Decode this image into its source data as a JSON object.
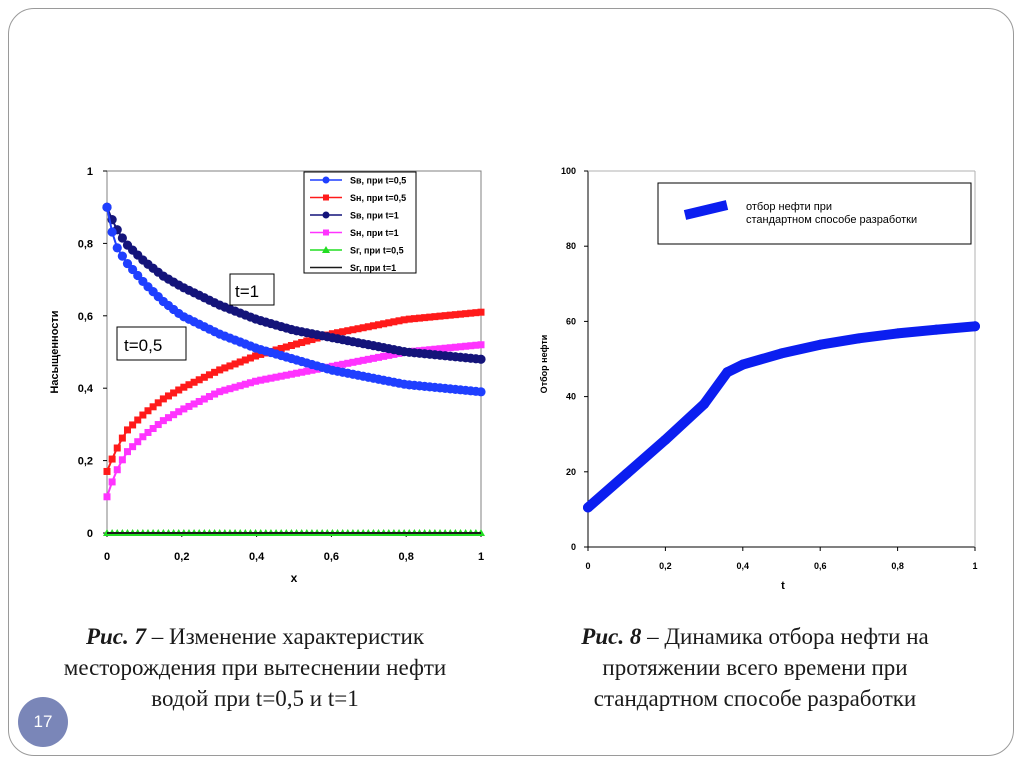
{
  "slide_number": "17",
  "captions": {
    "fig7": {
      "label": "Рис. 7",
      "dash": " – ",
      "text": "Изменение характеристик месторождения при вытеснении нефти водой при t=0,5 и t=1"
    },
    "fig8": {
      "label": "Рис. 8",
      "dash": " – ",
      "text": "Динамика отбора нефти на протяжении всего времени при стандартном способе разработки"
    }
  },
  "chart_data": [
    {
      "type": "line",
      "xlabel": "x",
      "ylabel": "Насыщенности",
      "xlim": [
        0,
        1
      ],
      "ylim": [
        0,
        1
      ],
      "xticks": [
        "0",
        "0,2",
        "0,4",
        "0,6",
        "0,8",
        "1"
      ],
      "yticks": [
        "0",
        "0,2",
        "0,4",
        "0,6",
        "0,8",
        "1"
      ],
      "grid": false,
      "legend": "top-right",
      "annotations": [
        "t=1",
        "t=0,5"
      ],
      "x": [
        0,
        0.02,
        0.05,
        0.1,
        0.15,
        0.2,
        0.3,
        0.4,
        0.5,
        0.6,
        0.7,
        0.8,
        0.9,
        1
      ],
      "series": [
        {
          "name": "Sв, при t=0,5",
          "color": "#1f3fff",
          "marker": "circle",
          "values": [
            0.9,
            0.8,
            0.75,
            0.69,
            0.64,
            0.6,
            0.55,
            0.51,
            0.48,
            0.45,
            0.43,
            0.41,
            0.4,
            0.39
          ]
        },
        {
          "name": "Sн, при t=0,5",
          "color": "#ff1a1a",
          "marker": "square",
          "values": [
            0.17,
            0.22,
            0.28,
            0.33,
            0.37,
            0.4,
            0.45,
            0.49,
            0.52,
            0.55,
            0.57,
            0.59,
            0.6,
            0.61
          ]
        },
        {
          "name": "Sв, при t=1",
          "color": "#14147a",
          "marker": "circle",
          "values": [
            0.9,
            0.85,
            0.8,
            0.75,
            0.71,
            0.68,
            0.63,
            0.59,
            0.56,
            0.54,
            0.52,
            0.5,
            0.49,
            0.48
          ]
        },
        {
          "name": "Sн, при t=1",
          "color": "#ff33ff",
          "marker": "square",
          "values": [
            0.1,
            0.16,
            0.22,
            0.27,
            0.31,
            0.34,
            0.39,
            0.42,
            0.44,
            0.46,
            0.48,
            0.5,
            0.51,
            0.52
          ]
        },
        {
          "name": "Sг, при t=0,5",
          "color": "#22dd22",
          "marker": "triangle",
          "values": [
            0,
            0,
            0,
            0,
            0,
            0,
            0,
            0,
            0,
            0,
            0,
            0,
            0,
            0
          ]
        },
        {
          "name": "Sг, при t=1",
          "color": "#1a1a1a",
          "marker": "none",
          "values": [
            0,
            0,
            0,
            0,
            0,
            0,
            0,
            0,
            0,
            0,
            0,
            0,
            0,
            0
          ]
        }
      ]
    },
    {
      "type": "line",
      "xlabel": "t",
      "ylabel": "Отбор нефти",
      "xlim": [
        0,
        1
      ],
      "ylim": [
        0,
        100
      ],
      "xticks": [
        "0",
        "0,2",
        "0,4",
        "0,6",
        "0,8",
        "1"
      ],
      "yticks": [
        "0",
        "20",
        "40",
        "60",
        "80",
        "100"
      ],
      "grid": false,
      "legend": "top-right",
      "x": [
        0,
        0.1,
        0.2,
        0.3,
        0.36,
        0.4,
        0.5,
        0.6,
        0.7,
        0.8,
        0.9,
        1
      ],
      "series": [
        {
          "name": "отбор нефти при стандартном способе разработки",
          "color": "#0b1ef0",
          "values": [
            10.5,
            19.5,
            28.5,
            38,
            46.5,
            48.5,
            51.5,
            53.8,
            55.5,
            56.8,
            57.8,
            58.7
          ]
        }
      ]
    }
  ]
}
